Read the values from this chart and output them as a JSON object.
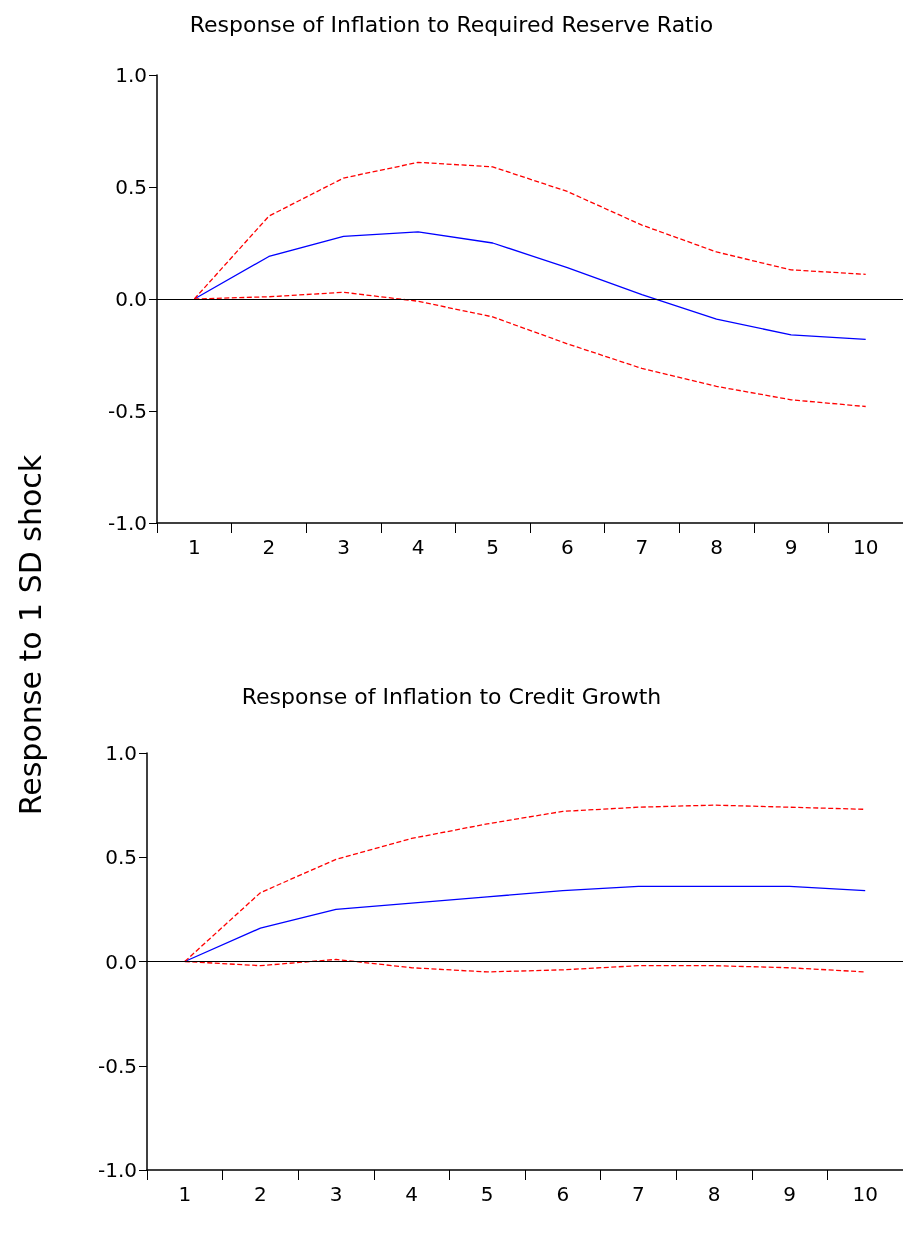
{
  "chart_data": [
    {
      "type": "line",
      "title": "Response of Inflation to Required Reserve Ratio",
      "ylabel": "Response to 1 SD shock",
      "categories": [
        "1",
        "2",
        "3",
        "4",
        "5",
        "6",
        "7",
        "8",
        "9",
        "10"
      ],
      "series": [
        {
          "color": "#0000ff",
          "line_style": "solid",
          "values": [
            0,
            0.19,
            0.28,
            0.3,
            0.25,
            0.14,
            0.02,
            -0.09,
            -0.16,
            -0.18
          ]
        },
        {
          "color": "#ff0000",
          "line_style": "dashed",
          "values": [
            0,
            0.37,
            0.54,
            0.61,
            0.59,
            0.48,
            0.33,
            0.21,
            0.13,
            0.11
          ]
        },
        {
          "color": "#ff0000",
          "line_style": "dashed",
          "values": [
            0,
            0.01,
            0.03,
            -0.01,
            -0.08,
            -0.2,
            -0.31,
            -0.39,
            -0.45,
            -0.48
          ]
        }
      ],
      "ylim": [
        -1,
        1
      ],
      "yticks": [
        {
          "value": -1,
          "label": "-1.0"
        },
        {
          "value": -0.5,
          "label": "-0.5"
        },
        {
          "value": 0,
          "label": "0.0"
        },
        {
          "value": 0.5,
          "label": "0.5"
        },
        {
          "value": 1,
          "label": "1.0"
        }
      ],
      "ref_lines": [
        {
          "axis": "y",
          "value": 0,
          "color": "#000000"
        }
      ],
      "grid": false,
      "marker": "none"
    },
    {
      "type": "line",
      "title": "Response of Inflation to Credit Growth",
      "categories": [
        "1",
        "2",
        "3",
        "4",
        "5",
        "6",
        "7",
        "8",
        "9",
        "10"
      ],
      "series": [
        {
          "color": "#0000ff",
          "line_style": "solid",
          "values": [
            0,
            0.16,
            0.25,
            0.28,
            0.31,
            0.34,
            0.36,
            0.36,
            0.36,
            0.34
          ]
        },
        {
          "color": "#ff0000",
          "line_style": "dashed",
          "values": [
            0,
            0.33,
            0.49,
            0.59,
            0.66,
            0.72,
            0.74,
            0.75,
            0.74,
            0.73
          ]
        },
        {
          "color": "#ff0000",
          "line_style": "dashed",
          "values": [
            0,
            -0.02,
            0.01,
            -0.03,
            -0.05,
            -0.04,
            -0.02,
            -0.02,
            -0.03,
            -0.05
          ]
        }
      ],
      "ylim": [
        -1,
        1
      ],
      "yticks": [
        {
          "value": -1,
          "label": "-1.0"
        },
        {
          "value": -0.5,
          "label": "-0.5"
        },
        {
          "value": 0,
          "label": "0.0"
        },
        {
          "value": 0.5,
          "label": "0.5"
        },
        {
          "value": 1,
          "label": "1.0"
        }
      ],
      "ref_lines": [
        {
          "axis": "y",
          "value": 0,
          "color": "#000000"
        }
      ],
      "grid": false,
      "marker": "none"
    }
  ]
}
